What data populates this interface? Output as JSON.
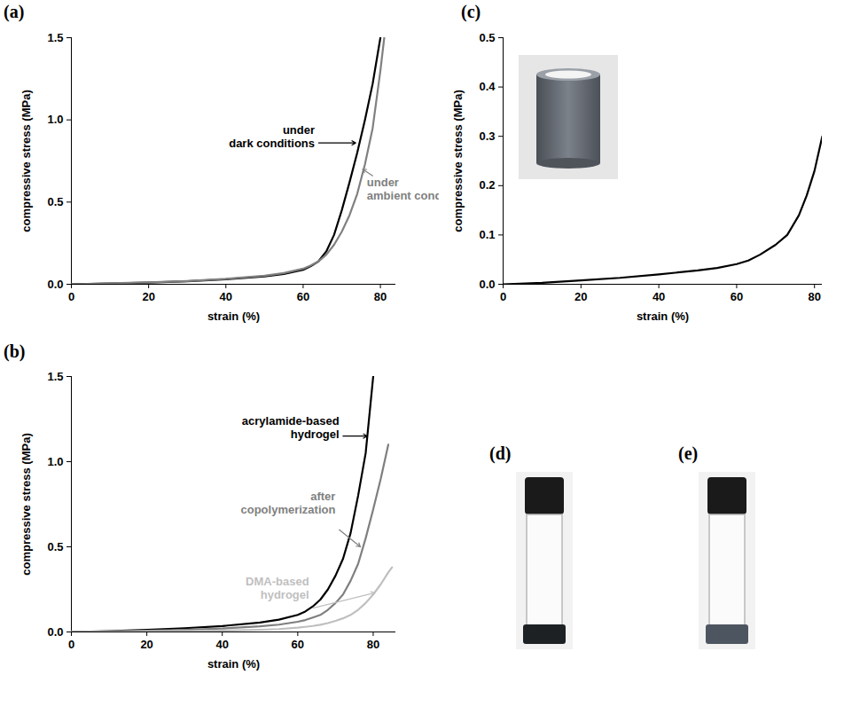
{
  "chart_data": [
    {
      "type": "line",
      "title": "(a)",
      "x_label": "strain (%)",
      "y_label": "compressive stress (MPa)",
      "xlim": [
        0,
        84
      ],
      "ylim": [
        0,
        1.5
      ],
      "xticks": [
        0,
        20,
        40,
        60,
        80
      ],
      "yticks": [
        {
          "value": 0,
          "label": "0.0"
        },
        0.5,
        {
          "value": 1,
          "label": "1.0"
        },
        1.5
      ],
      "x": [
        0,
        10,
        20,
        30,
        40,
        50,
        55,
        60,
        62,
        64,
        66,
        68,
        70,
        72,
        74,
        76,
        78,
        80,
        81
      ],
      "series": [
        {
          "name": "under\ndark conditions",
          "color": "#000000",
          "values": [
            0,
            0.005,
            0.01,
            0.018,
            0.03,
            0.048,
            0.062,
            0.088,
            0.11,
            0.14,
            0.2,
            0.3,
            0.45,
            0.62,
            0.8,
            1.0,
            1.22,
            1.5,
            null
          ]
        },
        {
          "name": "under\nambient conditions",
          "color": "#808080",
          "values": [
            0,
            0.006,
            0.012,
            0.02,
            0.033,
            0.052,
            0.068,
            0.095,
            0.115,
            0.14,
            0.18,
            0.24,
            0.32,
            0.42,
            0.55,
            0.73,
            0.95,
            1.3,
            1.5
          ]
        }
      ]
    },
    {
      "type": "line",
      "title": "(b)",
      "x_label": "strain (%)",
      "y_label": "compressive stress (MPa)",
      "xlim": [
        0,
        86
      ],
      "ylim": [
        0,
        1.5
      ],
      "xticks": [
        0,
        20,
        40,
        60,
        80
      ],
      "yticks": [
        {
          "value": 0,
          "label": "0.0"
        },
        0.5,
        {
          "value": 1,
          "label": "1.0"
        },
        1.5
      ],
      "x": [
        0,
        10,
        20,
        30,
        40,
        50,
        55,
        60,
        62,
        64,
        66,
        68,
        70,
        72,
        74,
        76,
        78,
        80,
        82,
        84,
        85
      ],
      "series": [
        {
          "name": "acrylamide-based\nhydrogel",
          "color": "#000000",
          "values": [
            0,
            0.005,
            0.012,
            0.022,
            0.035,
            0.055,
            0.072,
            0.1,
            0.12,
            0.15,
            0.19,
            0.25,
            0.33,
            0.43,
            0.58,
            0.8,
            1.05,
            1.5,
            null,
            null,
            null
          ]
        },
        {
          "name": "after\ncopolymerization",
          "color": "#7f7f7f",
          "values": [
            0,
            0.003,
            0.007,
            0.012,
            0.02,
            0.033,
            0.043,
            0.06,
            0.07,
            0.085,
            0.1,
            0.13,
            0.17,
            0.22,
            0.3,
            0.4,
            0.55,
            0.72,
            0.9,
            1.1,
            null
          ]
        },
        {
          "name": "DMA-based\nhydrogel",
          "color": "#bfbfbf",
          "values": [
            0,
            0.001,
            0.003,
            0.005,
            0.008,
            0.013,
            0.017,
            0.025,
            0.03,
            0.035,
            0.042,
            0.052,
            0.065,
            0.08,
            0.1,
            0.13,
            0.17,
            0.22,
            0.28,
            0.35,
            0.38
          ]
        }
      ]
    },
    {
      "type": "line",
      "title": "(c)",
      "x_label": "strain (%)",
      "y_label": "compressive stress (MPa)",
      "xlim": [
        0,
        82
      ],
      "ylim": [
        0,
        0.5
      ],
      "xticks": [
        0,
        20,
        40,
        60,
        80
      ],
      "yticks": [
        {
          "value": 0,
          "label": "0.0"
        },
        0.1,
        0.2,
        0.3,
        0.4,
        0.5
      ],
      "x": [
        0,
        10,
        20,
        30,
        40,
        50,
        55,
        60,
        63,
        66,
        70,
        73,
        76,
        78,
        80,
        82
      ],
      "series": [
        {
          "color": "#000000",
          "values": [
            0,
            0.003,
            0.008,
            0.013,
            0.02,
            0.028,
            0.033,
            0.041,
            0.048,
            0.06,
            0.08,
            0.1,
            0.14,
            0.18,
            0.23,
            0.3
          ]
        }
      ]
    }
  ],
  "photos": [
    "(d)",
    "(e)"
  ]
}
